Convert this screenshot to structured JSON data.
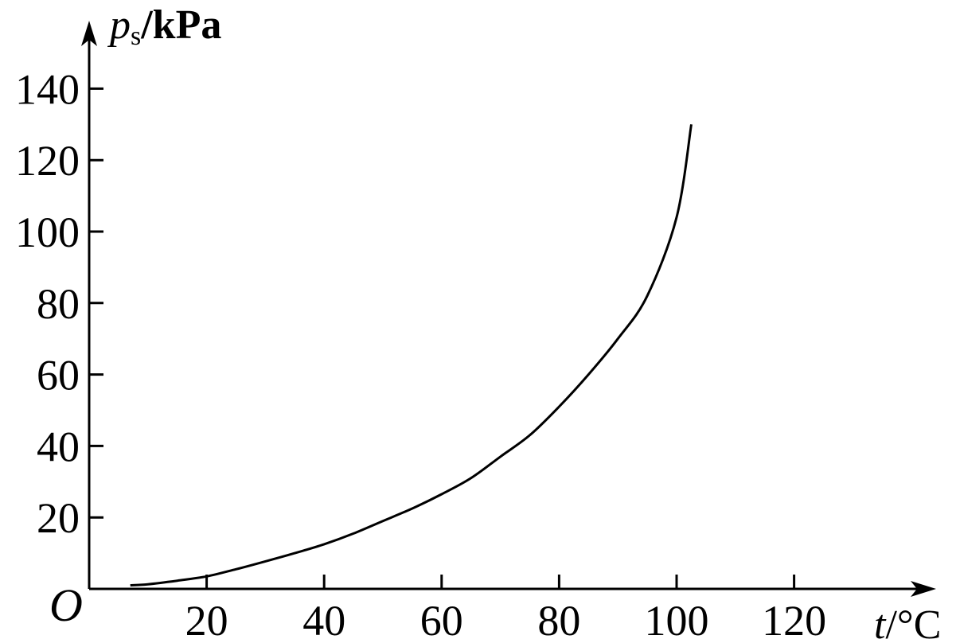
{
  "chart_data": {
    "type": "line",
    "title": "",
    "ylabel": {
      "symbol": "p",
      "subscript": "s",
      "unit": "/kPa"
    },
    "xlabel": {
      "symbol": "t",
      "unit": "/°C"
    },
    "origin_label": "O",
    "xlim": [
      0,
      140
    ],
    "ylim": [
      0,
      150
    ],
    "x_ticks": [
      20,
      40,
      60,
      80,
      100,
      120
    ],
    "y_ticks": [
      20,
      40,
      60,
      80,
      100,
      120,
      140
    ],
    "grid": false,
    "series": [
      {
        "color": "#000000",
        "x": [
          7,
          10,
          15,
          20,
          25,
          30,
          35,
          40,
          45,
          50,
          55,
          60,
          65,
          70,
          75,
          80,
          85,
          90,
          95,
          100,
          102.5
        ],
        "y": [
          1.0,
          1.3,
          2.3,
          3.5,
          5.5,
          7.7,
          10.0,
          12.5,
          15.5,
          19.0,
          22.5,
          26.5,
          31.0,
          37.0,
          43.0,
          51.0,
          60.0,
          70.0,
          82.0,
          104.0,
          130.0
        ]
      }
    ]
  }
}
